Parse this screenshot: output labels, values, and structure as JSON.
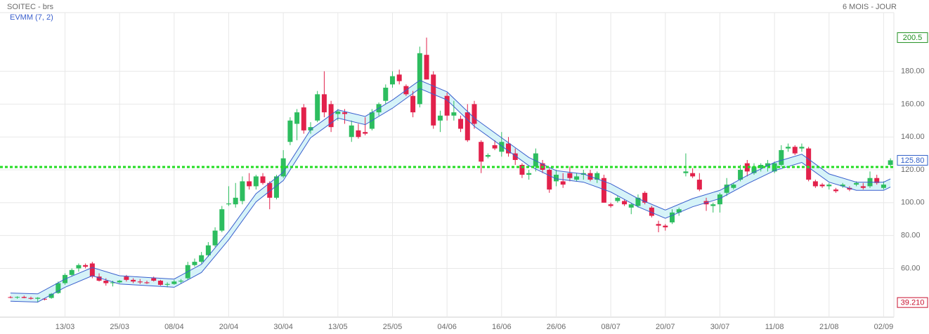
{
  "chart_data": {
    "type": "candlestick",
    "title": "SOITEC - brs",
    "subtitle": "6 MOIS - JOUR",
    "categories": [
      null,
      null,
      null,
      null,
      null,
      null,
      null,
      null,
      "13/03",
      null,
      null,
      null,
      null,
      null,
      null,
      null,
      "25/03",
      null,
      null,
      null,
      null,
      null,
      null,
      null,
      "08/04",
      null,
      null,
      null,
      null,
      null,
      null,
      null,
      "20/04",
      null,
      null,
      null,
      null,
      null,
      null,
      null,
      "30/04",
      null,
      null,
      null,
      null,
      null,
      null,
      null,
      "13/05",
      null,
      null,
      null,
      null,
      null,
      null,
      null,
      "25/05",
      null,
      null,
      null,
      null,
      null,
      null,
      null,
      "04/06",
      null,
      null,
      null,
      null,
      null,
      null,
      null,
      "16/06",
      null,
      null,
      null,
      null,
      null,
      null,
      null,
      "26/06",
      null,
      null,
      null,
      null,
      null,
      null,
      null,
      "08/07",
      null,
      null,
      null,
      null,
      null,
      null,
      null,
      "20/07",
      null,
      null,
      null,
      null,
      null,
      null,
      null,
      "30/07",
      null,
      null,
      null,
      null,
      null,
      null,
      null,
      "11/08",
      null,
      null,
      null,
      null,
      null,
      null,
      null,
      "21/08",
      null,
      null,
      null,
      null,
      null,
      null,
      null,
      "02/09",
      null
    ],
    "open": [
      42.5,
      42.2,
      42.6,
      42.0,
      41.5,
      41.5,
      42,
      45,
      51,
      56,
      60,
      62,
      63,
      55,
      52.5,
      51,
      51.5,
      55,
      53,
      52,
      51.5,
      54,
      52.5,
      50,
      50.5,
      52,
      54,
      62,
      64,
      68,
      74,
      83,
      99,
      99,
      101,
      113,
      110,
      116,
      112,
      103,
      116,
      137,
      148,
      158,
      144,
      150,
      166,
      160,
      154,
      155,
      140,
      144,
      143,
      145,
      155,
      162,
      172,
      178,
      171,
      165,
      160,
      190,
      178,
      150,
      165,
      153,
      151,
      155,
      160,
      137,
      128,
      135,
      131,
      136,
      130,
      123,
      117,
      122,
      124,
      120,
      113,
      113,
      118,
      114,
      117,
      118,
      114,
      115,
      99,
      101,
      101,
      97,
      98,
      106,
      97,
      87,
      86,
      88,
      94,
      118,
      118,
      114,
      101,
      98,
      99,
      106,
      109,
      114,
      124,
      118,
      121,
      122,
      119,
      123,
      133,
      134,
      133,
      133,
      113,
      111,
      110,
      108,
      110,
      109,
      111,
      110,
      110,
      115,
      109,
      123
    ],
    "high": [
      43.2,
      43,
      43.4,
      42.8,
      42.5,
      42,
      45,
      52,
      57,
      60,
      63,
      63,
      64,
      57,
      54,
      52.5,
      53,
      56,
      54,
      53.5,
      52.5,
      55,
      53,
      51.5,
      53,
      53.5,
      64,
      66,
      70,
      76,
      85,
      98,
      110,
      112,
      116,
      118,
      117,
      118,
      113,
      117,
      132,
      152,
      157,
      160,
      149,
      168,
      180,
      162,
      157,
      157,
      150,
      148,
      152,
      157,
      161,
      172,
      180,
      181,
      172,
      168,
      195,
      200.5,
      180,
      156,
      167,
      162,
      153,
      160,
      162,
      138,
      130,
      138,
      143,
      140,
      133,
      124,
      120,
      133,
      126,
      121,
      120,
      118,
      122,
      118,
      120,
      120,
      119,
      117,
      100,
      104,
      102,
      100,
      105,
      107,
      98,
      89,
      87,
      96,
      97,
      130,
      121,
      118,
      103,
      100,
      106,
      115,
      112,
      123,
      126,
      124,
      124,
      126,
      125,
      135,
      136,
      135,
      136,
      134,
      114,
      112,
      112,
      109,
      112,
      110,
      113,
      112,
      119,
      117,
      113,
      127
    ],
    "low": [
      41.8,
      41.5,
      41.8,
      41,
      39.21,
      40.5,
      41.5,
      44.5,
      50,
      55,
      58,
      60,
      54,
      52,
      49.5,
      49,
      51,
      52,
      51,
      50.5,
      50.5,
      52,
      49.5,
      48.5,
      50,
      51,
      53,
      61,
      63,
      67,
      73,
      82,
      98,
      97,
      99,
      108,
      108,
      111,
      96,
      102,
      115,
      135,
      138,
      142,
      142,
      149,
      152,
      143,
      150,
      148,
      137,
      139,
      141,
      144,
      153,
      160,
      170,
      172,
      165,
      152,
      158,
      175,
      145,
      143,
      150,
      150,
      143,
      137,
      145,
      118,
      127,
      132,
      128,
      128,
      123,
      115,
      114,
      119,
      118,
      106,
      110,
      109,
      113,
      113,
      114,
      113,
      112,
      100,
      97,
      100,
      98,
      93,
      97,
      99,
      91,
      82,
      83,
      87,
      92,
      116,
      115,
      107,
      95,
      94,
      94,
      104,
      108,
      113,
      116,
      117,
      119,
      119,
      118,
      122,
      131,
      129,
      131,
      113,
      109,
      109,
      108,
      106,
      109,
      107,
      110,
      108,
      109,
      111,
      108,
      122
    ],
    "close": [
      42.2,
      42.6,
      42.0,
      41.5,
      42.1,
      41.0,
      44.5,
      51,
      56,
      59,
      62,
      61,
      55,
      52.5,
      51,
      51.5,
      52.5,
      53,
      52,
      51.5,
      51,
      52.5,
      50,
      50.5,
      52,
      52.5,
      62,
      64,
      68,
      74,
      83,
      96,
      99.5,
      103,
      113,
      110,
      116,
      112,
      103,
      116,
      127,
      150,
      155,
      144,
      146,
      166,
      155,
      146,
      155.5,
      154,
      147,
      140,
      142,
      155,
      160,
      170,
      177,
      174,
      166,
      155,
      191,
      175,
      147,
      153,
      153,
      155,
      145,
      138,
      148,
      125,
      129,
      133,
      137,
      130,
      126,
      117,
      118,
      130,
      120,
      108,
      117,
      111,
      115,
      116,
      118,
      114,
      118,
      100,
      98,
      103,
      99,
      99,
      103,
      100,
      92,
      86,
      85,
      94,
      96,
      119,
      116,
      108,
      99,
      99,
      105,
      111,
      111,
      120,
      119,
      122,
      123,
      124,
      124,
      132,
      134,
      130,
      134,
      114,
      110,
      110,
      111,
      107,
      111,
      108,
      112,
      109,
      115,
      112,
      111,
      125.8
    ],
    "up_color": "#2dbd5f",
    "down_color": "#e2214b",
    "ylim": [
      30.3,
      215.7
    ],
    "yticks": [
      {
        "value": 60,
        "label": "60.00"
      },
      {
        "value": 80,
        "label": "80.00"
      },
      {
        "value": 100,
        "label": "100.00"
      },
      {
        "value": 120,
        "label": "120.00"
      },
      {
        "value": 140,
        "label": "140.00"
      },
      {
        "value": 160,
        "label": "160.00"
      },
      {
        "value": 180,
        "label": "180.00"
      }
    ],
    "grid": true,
    "indicator": {
      "name": "EVMM (7, 2)",
      "color": "#3a5fcd",
      "fill": "#d6f3f8",
      "x": [
        0,
        4,
        8,
        12,
        16,
        20,
        24,
        28,
        32,
        36,
        40,
        44,
        48,
        52,
        56,
        60,
        64,
        68,
        72,
        76,
        80,
        84,
        88,
        92,
        96,
        100,
        104,
        108,
        112,
        116,
        120,
        124,
        128,
        129
      ],
      "upper": [
        45,
        44.5,
        53.5,
        60.5,
        55.5,
        54.5,
        53.5,
        62.5,
        82.5,
        105.5,
        118.5,
        144.5,
        156.5,
        152.5,
        162.5,
        174.5,
        167.5,
        151.5,
        139.5,
        127.5,
        119.5,
        117.5,
        111.5,
        102.5,
        95.5,
        102.5,
        107.5,
        116.5,
        124.5,
        129.5,
        117.5,
        112.5,
        112.5,
        114.5
      ],
      "lower": [
        40,
        39.5,
        48.5,
        55.5,
        50.5,
        49.5,
        48.5,
        57.5,
        77.5,
        100.5,
        113.5,
        139.5,
        151.5,
        147.5,
        157.5,
        169.5,
        162.5,
        146.5,
        134.5,
        122.5,
        114.5,
        112.5,
        106.5,
        97.5,
        90.5,
        97.5,
        102.5,
        111.5,
        119.5,
        124.5,
        112.5,
        107.5,
        107.5,
        109.5
      ]
    },
    "reference_line": {
      "value": 121.7,
      "color": "#22dd22"
    },
    "price_tags": [
      200.5,
      {
        "value": 125.8,
        "label": "125.80"
      },
      {
        "value": 39.21,
        "label": "39.210"
      }
    ],
    "price_tag_colors": [
      "#1f8f1f",
      "#2f5fc8",
      "#c8102e"
    ]
  }
}
